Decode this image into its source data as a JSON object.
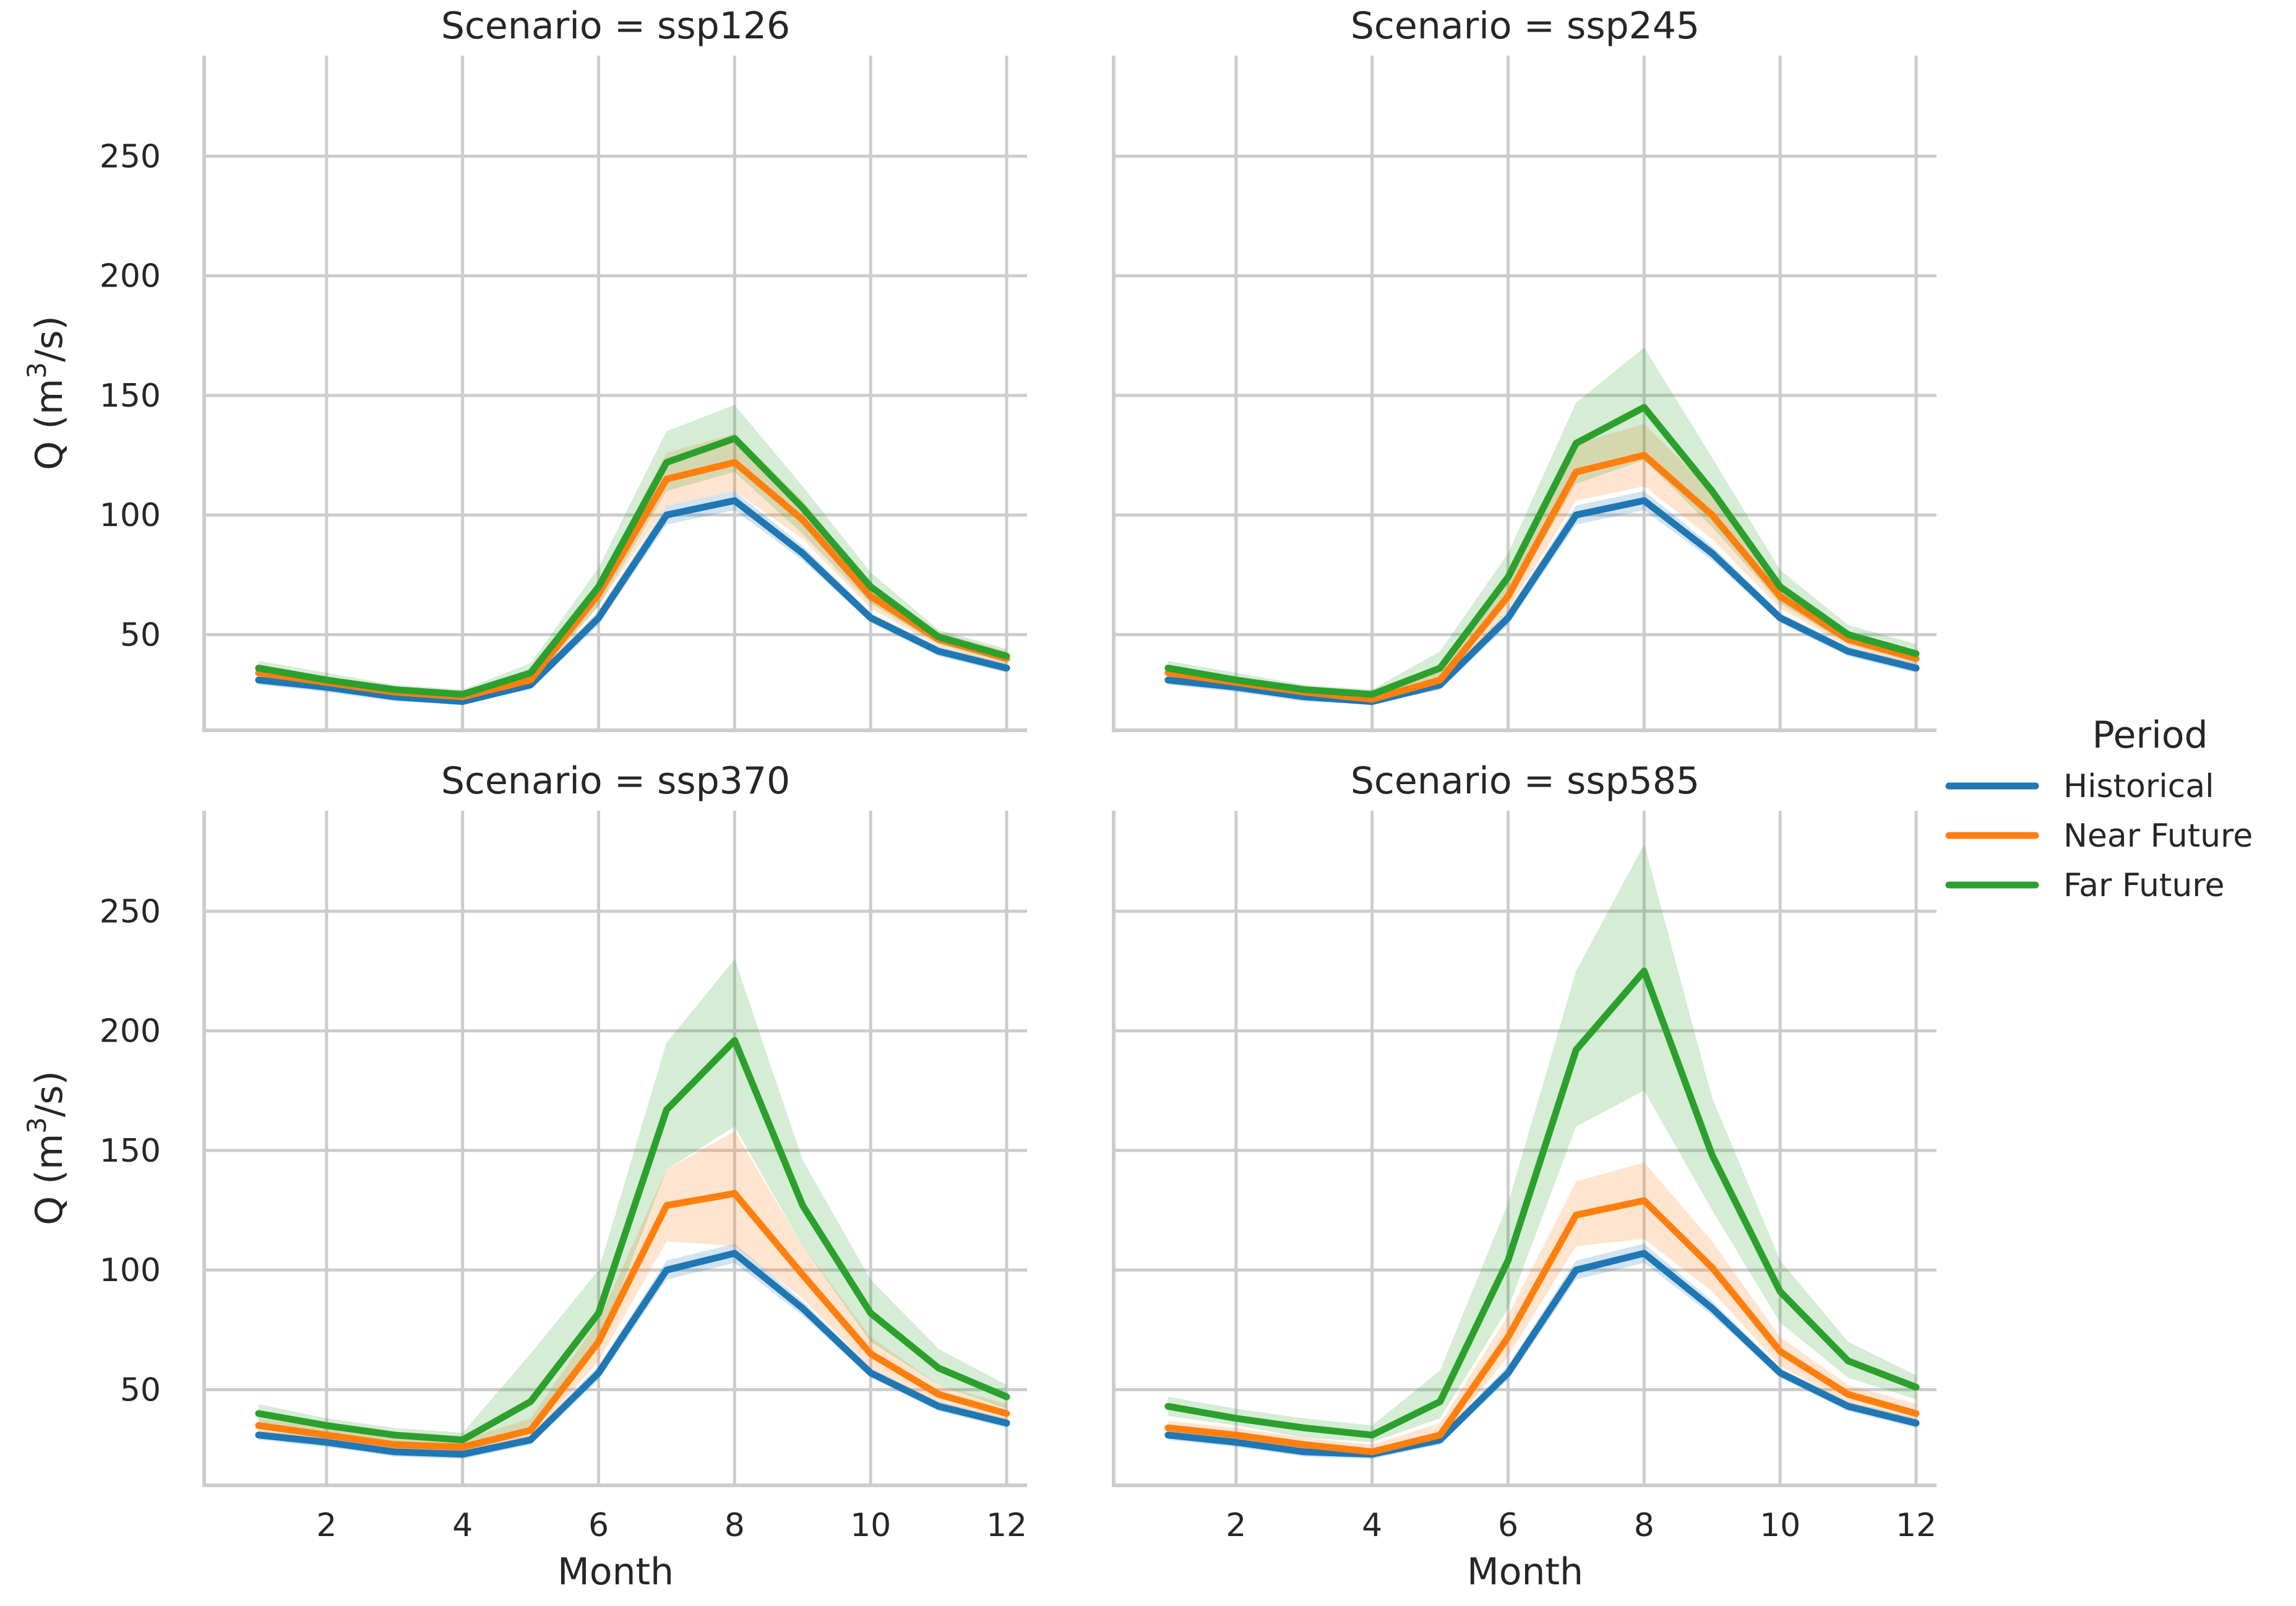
{
  "chart_data": {
    "type": "line",
    "facet_variable": "Scenario",
    "x": [
      1,
      2,
      3,
      4,
      5,
      6,
      7,
      8,
      9,
      10,
      11,
      12
    ],
    "x_ticks": [
      2,
      4,
      6,
      8,
      10,
      12
    ],
    "xlim": [
      0.2,
      12.3
    ],
    "y_ticks": [
      50,
      100,
      150,
      200,
      250
    ],
    "ylim": [
      10,
      292
    ],
    "xlabel": "Month",
    "ylabel_main": "Q (m",
    "ylabel_sup": "3",
    "ylabel_tail": "/s)",
    "grid": true,
    "legend": {
      "title": "Period",
      "placement": "right",
      "entries": [
        "Historical",
        "Near Future",
        "Far Future"
      ]
    },
    "colors": {
      "Historical": "#1f77b4",
      "Near Future": "#ff7f0e",
      "Far Future": "#2ca02c"
    },
    "panels": [
      {
        "title": "Scenario = ssp126",
        "series": [
          {
            "name": "Historical",
            "values": [
              31,
              28,
              24,
              22,
              29,
              57,
              100,
              106,
              84,
              57,
              43,
              36
            ],
            "lower": [
              29,
              26,
              22,
              21,
              27,
              54,
              96,
              102,
              81,
              55,
              41,
              34
            ],
            "upper": [
              33,
              30,
              26,
              24,
              31,
              60,
              104,
              110,
              87,
              59,
              45,
              38
            ]
          },
          {
            "name": "Near Future",
            "values": [
              34,
              30,
              26,
              24,
              31,
              67,
              115,
              122,
              98,
              66,
              48,
              40
            ],
            "lower": [
              31,
              28,
              24,
              22,
              28,
              62,
              104,
              110,
              90,
              61,
              45,
              37
            ],
            "upper": [
              37,
              32,
              28,
              26,
              34,
              72,
              126,
              134,
              106,
              71,
              51,
              43
            ]
          },
          {
            "name": "Far Future",
            "values": [
              36,
              31,
              27,
              25,
              34,
              70,
              122,
              132,
              103,
              70,
              49,
              41
            ],
            "lower": [
              33,
              29,
              25,
              23,
              30,
              62,
              110,
              118,
              92,
              63,
              46,
              38
            ],
            "upper": [
              39,
              34,
              29,
              27,
              38,
              78,
              135,
              146,
              112,
              76,
              52,
              44
            ]
          }
        ]
      },
      {
        "title": "Scenario = ssp245",
        "series": [
          {
            "name": "Historical",
            "values": [
              31,
              28,
              24,
              22,
              29,
              57,
              100,
              106,
              84,
              57,
              43,
              36
            ],
            "lower": [
              29,
              26,
              22,
              21,
              27,
              54,
              96,
              102,
              81,
              55,
              41,
              34
            ],
            "upper": [
              33,
              30,
              26,
              24,
              31,
              60,
              104,
              110,
              87,
              59,
              45,
              38
            ]
          },
          {
            "name": "Near Future",
            "values": [
              34,
              30,
              26,
              23,
              31,
              66,
              118,
              125,
              100,
              66,
              48,
              40
            ],
            "lower": [
              31,
              28,
              24,
              21,
              27,
              60,
              106,
              112,
              90,
              61,
              45,
              37
            ],
            "upper": [
              37,
              32,
              28,
              26,
              36,
              73,
              130,
              138,
              110,
              71,
              51,
              43
            ]
          },
          {
            "name": "Far Future",
            "values": [
              36,
              31,
              27,
              25,
              36,
              74,
              130,
              145,
              110,
              70,
              50,
              42
            ],
            "lower": [
              33,
              29,
              25,
              23,
              31,
              64,
              113,
              123,
              95,
              63,
              46,
              38
            ],
            "upper": [
              39,
              34,
              29,
              27,
              43,
              84,
              147,
              170,
              124,
              77,
              54,
              46
            ]
          }
        ]
      },
      {
        "title": "Scenario = ssp370",
        "series": [
          {
            "name": "Historical",
            "values": [
              31,
              28,
              24,
              23,
              29,
              57,
              100,
              107,
              84,
              57,
              43,
              36
            ],
            "lower": [
              29,
              26,
              22,
              21,
              27,
              54,
              96,
              103,
              81,
              55,
              41,
              34
            ],
            "upper": [
              33,
              30,
              26,
              25,
              31,
              60,
              104,
              111,
              87,
              59,
              45,
              38
            ]
          },
          {
            "name": "Near Future",
            "values": [
              35,
              31,
              27,
              26,
              33,
              70,
              127,
              132,
              98,
              65,
              48,
              40
            ],
            "lower": [
              32,
              28,
              24,
              23,
              29,
              62,
              112,
              110,
              88,
              59,
              44,
              37
            ],
            "upper": [
              38,
              34,
              30,
              29,
              38,
              79,
              142,
              158,
              110,
              72,
              52,
              44
            ]
          },
          {
            "name": "Far Future",
            "values": [
              40,
              35,
              31,
              29,
              45,
              82,
              167,
              196,
              127,
              82,
              59,
              47
            ],
            "lower": [
              36,
              32,
              28,
              26,
              33,
              68,
              142,
              160,
              110,
              70,
              52,
              42
            ],
            "upper": [
              44,
              38,
              34,
              32,
              65,
              100,
              195,
              230,
              146,
              96,
              67,
              52
            ]
          }
        ]
      },
      {
        "title": "Scenario = ssp585",
        "series": [
          {
            "name": "Historical",
            "values": [
              31,
              28,
              24,
              23,
              29,
              57,
              100,
              107,
              84,
              57,
              43,
              36
            ],
            "lower": [
              29,
              26,
              22,
              21,
              27,
              54,
              96,
              103,
              81,
              55,
              41,
              34
            ],
            "upper": [
              33,
              30,
              26,
              25,
              31,
              60,
              104,
              111,
              87,
              59,
              45,
              38
            ]
          },
          {
            "name": "Near Future",
            "values": [
              34,
              31,
              27,
              24,
              31,
              72,
              123,
              129,
              101,
              66,
              48,
              40
            ],
            "lower": [
              31,
              28,
              24,
              22,
              28,
              64,
              110,
              113,
              91,
              60,
              44,
              37
            ],
            "upper": [
              37,
              34,
              30,
              27,
              36,
              81,
              137,
              145,
              112,
              72,
              52,
              44
            ]
          },
          {
            "name": "Far Future",
            "values": [
              43,
              38,
              34,
              31,
              45,
              104,
              192,
              225,
              148,
              91,
              62,
              51
            ],
            "lower": [
              39,
              35,
              30,
              28,
              38,
              84,
              160,
              175,
              125,
              78,
              55,
              46
            ],
            "upper": [
              47,
              42,
              38,
              35,
              58,
              128,
              225,
              278,
              172,
              104,
              70,
              56
            ]
          }
        ]
      }
    ]
  }
}
